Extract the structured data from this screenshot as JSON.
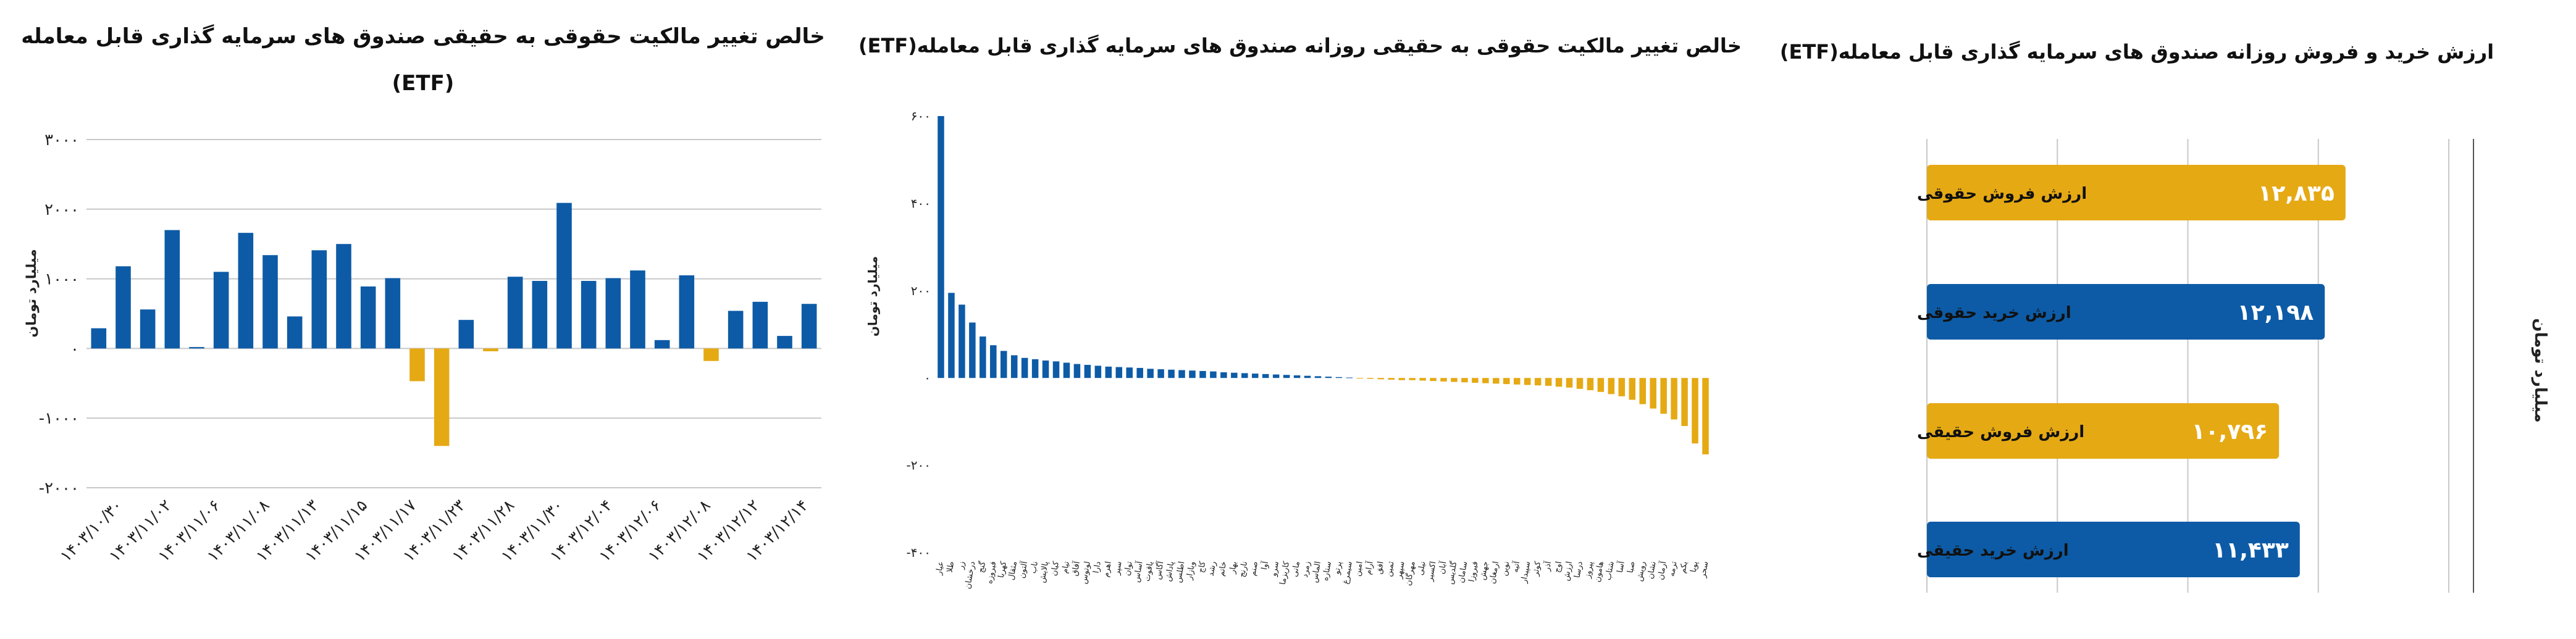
{
  "colors": {
    "blue": "#0d5ba6",
    "gold": "#e5a914",
    "grid": "#c8c8c8"
  },
  "chart_data": [
    {
      "type": "bar",
      "title": "خالص تغییر مالکیت حقوقی به حقیقی صندوق های سرمایه گذاری قابل معامله",
      "subtitle": "(ETF)",
      "ylabel": "میلیارد تومان",
      "ylim": [
        -2000,
        3000
      ],
      "yticks": [
        "۳۰۰۰",
        "۲۰۰۰",
        "۱۰۰۰",
        "۰",
        "-۱۰۰۰",
        "-۲۰۰۰"
      ],
      "x_ticklabels": [
        "۱۴۰۳/۱۰/۳۰",
        "۱۴۰۳/۱۱/۰۲",
        "۱۴۰۳/۱۱/۰۶",
        "۱۴۰۳/۱۱/۰۸",
        "۱۴۰۳/۱۱/۱۳",
        "۱۴۰۳/۱۱/۱۵",
        "۱۴۰۳/۱۱/۱۷",
        "۱۴۰۳/۱۱/۲۳",
        "۱۴۰۳/۱۱/۲۸",
        "۱۴۰۳/۱۱/۳۰",
        "۱۴۰۳/۱۲/۰۴",
        "۱۴۰۳/۱۲/۰۶",
        "۱۴۰۳/۱۲/۰۸",
        "۱۴۰۳/۱۲/۱۲",
        "۱۴۰۳/۱۲/۱۴"
      ],
      "values": [
        290,
        1180,
        560,
        1700,
        20,
        1100,
        1660,
        1340,
        460,
        1410,
        1500,
        890,
        1010,
        -470,
        -1400,
        410,
        -40,
        1030,
        970,
        2090,
        970,
        1010,
        1120,
        120,
        1050,
        -180,
        540,
        670,
        180,
        640
      ]
    },
    {
      "type": "bar",
      "title": "خالص تغییر مالکیت حقوقی به حقیقی روزانه صندوق های سرمایه گذاری قابل معامله(ETF)",
      "ylabel": "میلیارد تومان",
      "ylim": [
        -400,
        600
      ],
      "yticks": [
        "۶۰۰",
        "۴۰۰",
        "۲۰۰",
        "۰",
        "-۲۰۰",
        "-۴۰۰"
      ],
      "categories": [
        "عیار",
        "طلا",
        "زر",
        "درخشان",
        "گنج",
        "فیروزه",
        "کهربا",
        "مثقال",
        "آلتون",
        "ناب",
        "پالایش",
        "کیان",
        "تیام",
        "آفاق",
        "لوتوس",
        "دارا",
        "اهرم",
        "سپر",
        "توان",
        "آساس",
        "یاقوت",
        "آگاس",
        "پاداش",
        "اطلس",
        "وبازار",
        "کاج",
        "رشد",
        "خاتم",
        "بهار",
        "نارنج",
        "صنم",
        "آوا",
        "سرو",
        "کاریزما",
        "مانی",
        "زمرد",
        "الماس",
        "ستاره",
        "پرتو",
        "سیمرغ",
        "امین",
        "آرام",
        "افق",
        "ثمین",
        "سپهر",
        "مهرگان",
        "نیلی",
        "اکسیر",
        "آبان",
        "گلدیس",
        "سامان",
        "فیروزا",
        "جهش",
        "ارمغان",
        "نوین",
        "آتیه",
        "سپیدار",
        "کوثر",
        "آذر",
        "اوج",
        "ارزش",
        "درسا",
        "پیروز",
        "هامون",
        "شتاب",
        "آسا",
        "صبا",
        "رویش",
        "نشان",
        "آرمان",
        "ترمه",
        "یکم",
        "پویا",
        "سحر"
      ],
      "values": [
        600,
        195,
        168,
        127,
        95,
        75,
        62,
        52,
        46,
        43,
        40,
        38,
        35,
        32,
        30,
        28,
        26,
        25,
        24,
        23,
        21,
        20,
        19,
        18,
        17,
        16,
        15,
        13,
        12,
        11,
        10,
        9,
        8,
        7,
        6,
        5,
        4,
        3,
        2,
        1,
        -1,
        -2,
        -3,
        -4,
        -5,
        -5,
        -6,
        -7,
        -8,
        -9,
        -10,
        -11,
        -12,
        -13,
        -14,
        -15,
        -16,
        -17,
        -18,
        -20,
        -22,
        -25,
        -28,
        -32,
        -37,
        -42,
        -50,
        -60,
        -70,
        -82,
        -95,
        -110,
        -150,
        -175
      ]
    },
    {
      "type": "bar",
      "orientation": "horizontal",
      "title": "ارزش خرید و فروش روزانه صندوق های سرمایه گذاری قابل معامله(ETF)",
      "ylabel": "میلیارد تومان",
      "xlim": [
        0,
        16000
      ],
      "categories": [
        "ارزش فروش حقوقی",
        "ارزش خرید حقوقی",
        "ارزش فروش حقیقی",
        "ارزش خرید حقیقی"
      ],
      "data_labels": [
        "۱۲,۸۳۵",
        "۱۲,۱۹۸",
        "۱۰,۷۹۶",
        "۱۱,۴۳۳"
      ],
      "values": [
        12835,
        12198,
        10796,
        11433
      ],
      "bar_colors": [
        "#e5a914",
        "#0d5ba6",
        "#e5a914",
        "#0d5ba6"
      ]
    }
  ]
}
